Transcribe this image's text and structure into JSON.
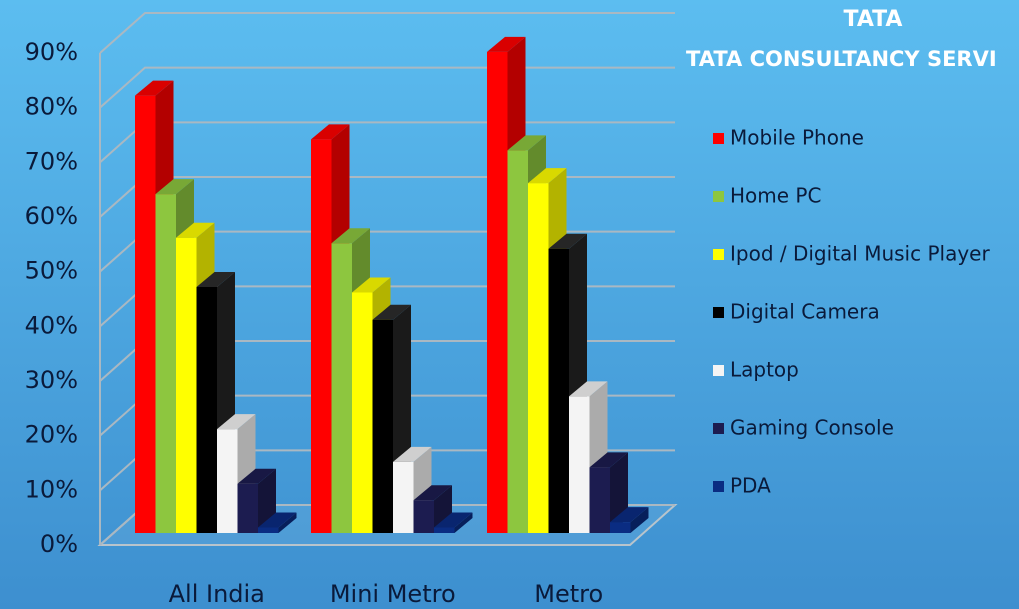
{
  "logo": {
    "mark": "TATA",
    "text": "TATA CONSULTANCY SERVI"
  },
  "chart_data": {
    "type": "bar3d",
    "categories": [
      "All  India",
      "Mini Metro",
      "Metro"
    ],
    "series": [
      {
        "name": "Mobile Phone",
        "color": "#ff0000",
        "values": [
          80,
          72,
          88
        ]
      },
      {
        "name": "Home PC",
        "color": "#8dc63f",
        "values": [
          62,
          53,
          70
        ]
      },
      {
        "name": "Ipod / Digital Music Player",
        "color": "#ffff00",
        "values": [
          54,
          44,
          64
        ]
      },
      {
        "name": "Digital Camera",
        "color": "#000000",
        "values": [
          45,
          39,
          52
        ]
      },
      {
        "name": "Laptop",
        "color": "#f4f4f4",
        "values": [
          19,
          13,
          25
        ]
      },
      {
        "name": "Gaming Console",
        "color": "#1c1c50",
        "values": [
          9,
          6,
          12
        ]
      },
      {
        "name": "PDA",
        "color": "#0a2c82",
        "values": [
          1,
          1,
          2
        ]
      }
    ],
    "ylim": [
      0,
      90
    ],
    "yticks": [
      {
        "value": 0,
        "label": "0%"
      },
      {
        "value": 10,
        "label": "10%"
      },
      {
        "value": 20,
        "label": "20%"
      },
      {
        "value": 30,
        "label": "30%"
      },
      {
        "value": 40,
        "label": "40%"
      },
      {
        "value": 50,
        "label": "50%"
      },
      {
        "value": 60,
        "label": "60%"
      },
      {
        "value": 70,
        "label": "70%"
      },
      {
        "value": 80,
        "label": "80%"
      },
      {
        "value": 90,
        "label": "90%"
      }
    ],
    "grid": true,
    "legend": "right"
  }
}
